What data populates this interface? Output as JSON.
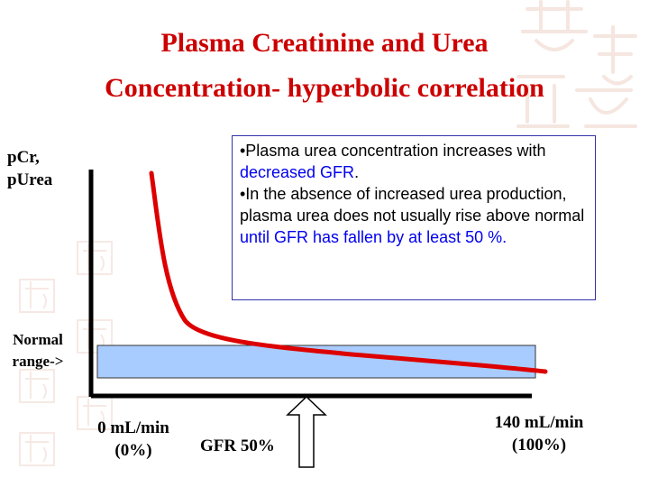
{
  "title": {
    "line1": "Plasma Creatinine and Urea",
    "line2": "Concentration- hyperbolic correlation"
  },
  "y_axis_label": {
    "line1": "pCr,",
    "line2": "pUrea"
  },
  "normal_range_label": {
    "line1": "Normal",
    "line2": "range->"
  },
  "x_labels": {
    "left": {
      "line1": "0 mL/min",
      "line2": "(0%)"
    },
    "right": {
      "line1": "140 mL/min",
      "line2": "(100%)"
    },
    "marker": "GFR 50%"
  },
  "info_box": {
    "bullet1": {
      "pre": "•Plasma urea concentration increases with ",
      "highlight": "decreased GFR",
      "post": "."
    },
    "bullet2": {
      "pre": "•In the absence of increased urea production, plasma urea does not usually rise above normal ",
      "highlight": "until GFR has fallen by at least 50 %."
    }
  },
  "colors": {
    "title": "#cc0000",
    "curve": "#dd0000",
    "normal_band": "#a8ccff",
    "highlight": "#0000ee",
    "axis": "#000000"
  },
  "icons": [
    "up-arrow-outline-icon",
    "chinese-seal-watermark"
  ]
}
